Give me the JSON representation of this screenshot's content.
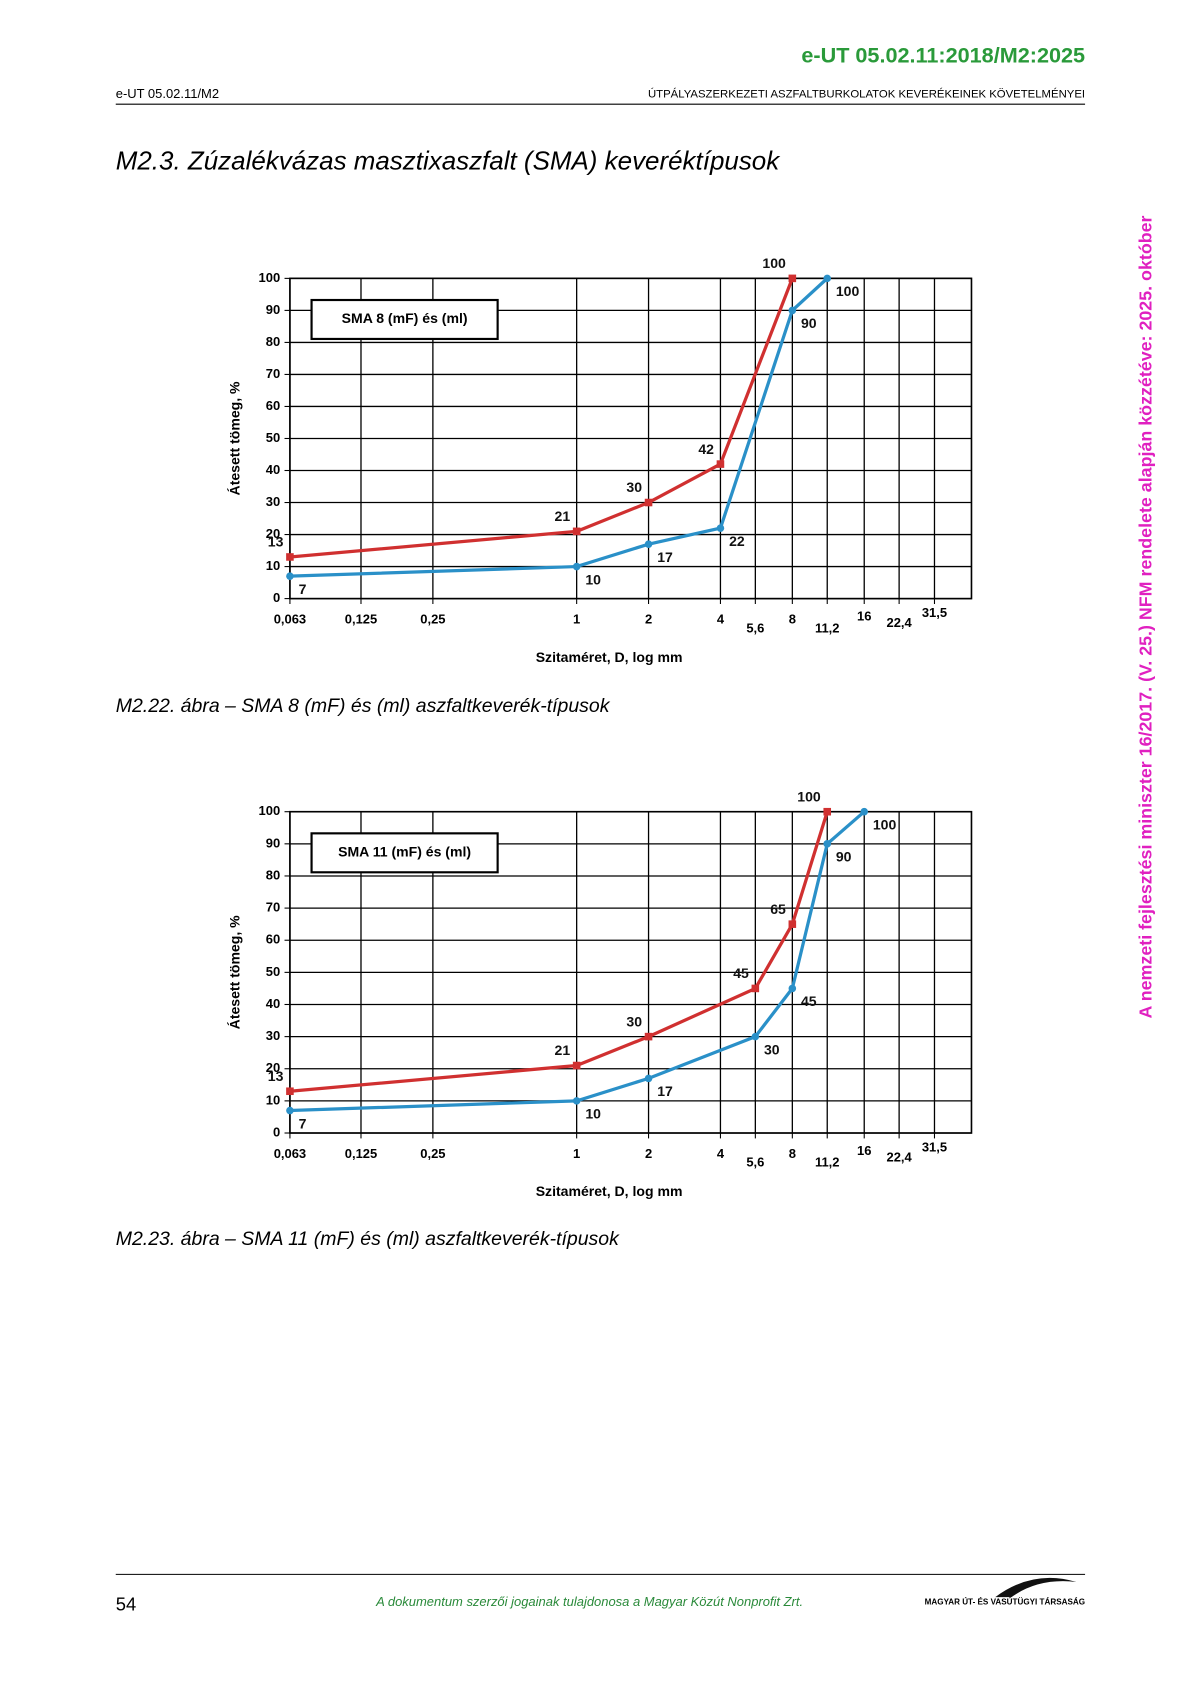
{
  "header": {
    "code": "e-UT 05.02.11:2018/M2:2025",
    "doc_id": "e-UT 05.02.11/M2",
    "doc_title": "ÚTPÁLYASZERKEZETI ASZFALTBURKOLATOK KEVERÉKEINEK KÖVETELMÉNYEI"
  },
  "section_title": "M2.3.  Zúzalékvázas masztixaszfalt (SMA) keveréktípusok",
  "chart_data": [
    {
      "type": "line",
      "box_label": "SMA 8 (mF) és (ml)",
      "caption": "M2.22. ábra – SMA 8 (mF) és (ml) aszfaltkeverék-típusok",
      "y_label": "Átesett tömeg, %",
      "x_label": "Szitaméret, D, log mm",
      "xscale": "log",
      "grid": true,
      "xlim": [
        0.063,
        45
      ],
      "ylim": [
        0,
        100
      ],
      "xticks": [
        {
          "value": 0.063,
          "label": "0,063"
        },
        {
          "value": 0.125,
          "label": "0,125"
        },
        {
          "value": 0.25,
          "label": "0,25"
        },
        1,
        2,
        4,
        {
          "value": 5.6,
          "label": "5,6"
        },
        8,
        {
          "value": 11.2,
          "label": "11,2"
        },
        16,
        {
          "value": 22.4,
          "label": "22,4"
        },
        {
          "value": 31.5,
          "label": "31,5"
        }
      ],
      "yticks": [
        0,
        10,
        20,
        30,
        40,
        50,
        60,
        70,
        80,
        90,
        100
      ],
      "series": [
        {
          "color": "#d03030",
          "marker": "square",
          "x": [
            0.063,
            1,
            2,
            4,
            8
          ],
          "values": [
            13,
            21,
            30,
            42,
            100
          ]
        },
        {
          "color": "#2a90c8",
          "marker": "circle",
          "x": [
            0.063,
            1,
            2,
            4,
            8,
            11.2
          ],
          "values": [
            7,
            10,
            17,
            22,
            90,
            100
          ]
        }
      ]
    },
    {
      "type": "line",
      "box_label": "SMA 11 (mF) és (ml)",
      "caption": "M2.23. ábra – SMA 11 (mF) és (ml) aszfaltkeverék-típusok",
      "y_label": "Átesett tömeg, %",
      "x_label": "Szitaméret, D, log mm",
      "xscale": "log",
      "grid": true,
      "xlim": [
        0.063,
        45
      ],
      "ylim": [
        0,
        100
      ],
      "xticks": [
        {
          "value": 0.063,
          "label": "0,063"
        },
        {
          "value": 0.125,
          "label": "0,125"
        },
        {
          "value": 0.25,
          "label": "0,25"
        },
        1,
        2,
        4,
        {
          "value": 5.6,
          "label": "5,6"
        },
        8,
        {
          "value": 11.2,
          "label": "11,2"
        },
        16,
        {
          "value": 22.4,
          "label": "22,4"
        },
        {
          "value": 31.5,
          "label": "31,5"
        }
      ],
      "yticks": [
        0,
        10,
        20,
        30,
        40,
        50,
        60,
        70,
        80,
        90,
        100
      ],
      "series": [
        {
          "color": "#d03030",
          "marker": "square",
          "x": [
            0.063,
            1,
            2,
            5.6,
            8,
            11.2
          ],
          "values": [
            13,
            21,
            30,
            45,
            65,
            100
          ]
        },
        {
          "color": "#2a90c8",
          "marker": "circle",
          "x": [
            0.063,
            1,
            2,
            5.6,
            8,
            11.2,
            16
          ],
          "values": [
            7,
            10,
            17,
            30,
            45,
            90,
            100
          ]
        }
      ]
    }
  ],
  "side_note": "A nemzeti fejlesztési miniszter 16/2017. (V. 25.) NFM rendelete alapján közzétéve: 2025. október",
  "footer": {
    "page": "54",
    "copyright": "A dokumentum szerzői jogainak tulajdonosa a Magyar Közút Nonprofit Zrt.",
    "logo": "MAGYAR ÚT- ÉS VASÚTÜGYI TÁRSASÁG"
  }
}
